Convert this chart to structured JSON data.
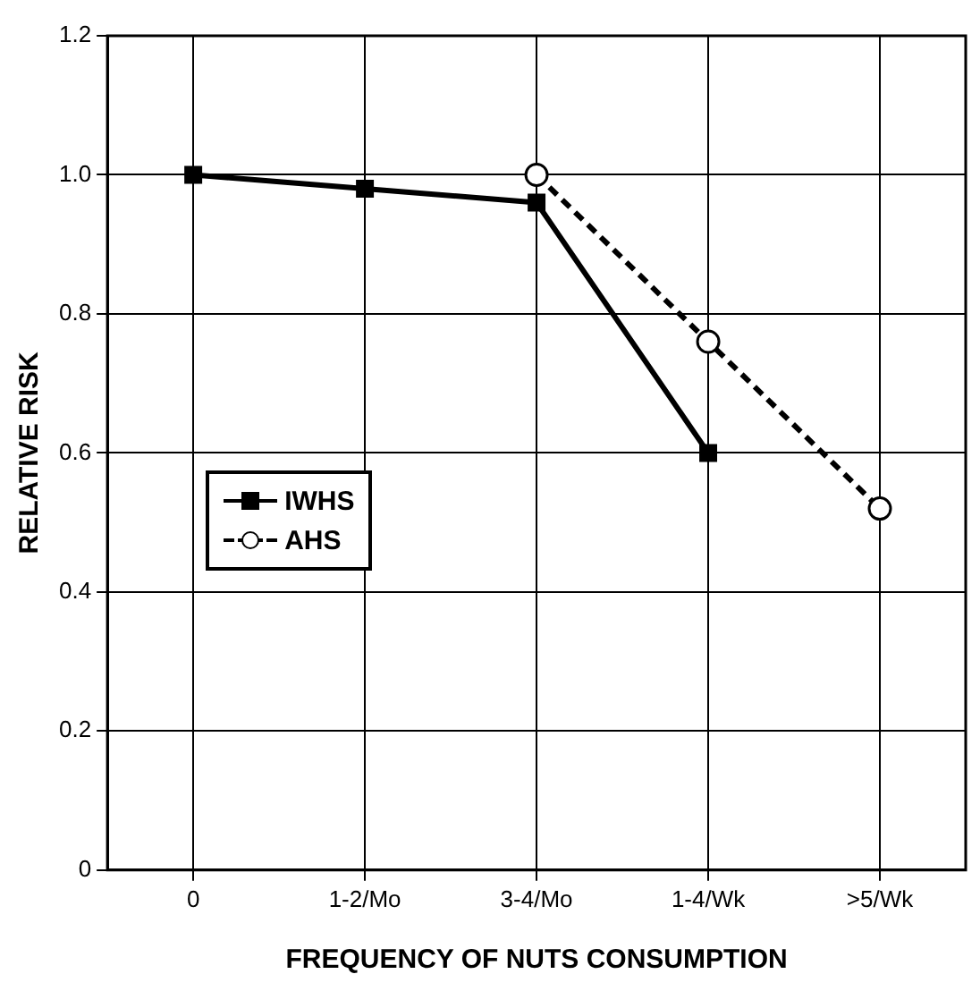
{
  "chart_data": {
    "type": "line",
    "xlabel": "FREQUENCY OF NUTS CONSUMPTION",
    "ylabel": "RELATIVE RISK",
    "categories": [
      "0",
      "1-2/Mo",
      "3-4/Mo",
      "1-4/Wk",
      ">5/Wk"
    ],
    "series": [
      {
        "name": "IWHS",
        "color": "#000000",
        "values": [
          1.0,
          0.98,
          0.96,
          0.6,
          null
        ],
        "marker": "square",
        "line_style": "solid"
      },
      {
        "name": "AHS",
        "color": "#000000",
        "values": [
          null,
          null,
          1.0,
          0.76,
          0.52
        ],
        "marker": "circle",
        "line_style": "dashed"
      }
    ],
    "ylim": [
      0,
      1.2
    ],
    "yticks": [
      0,
      {
        "value": 0.2,
        "label": "0.2"
      },
      {
        "value": 0.4,
        "label": "0.4"
      },
      {
        "value": 0.6,
        "label": "0.6"
      },
      {
        "value": 0.8,
        "label": "0.8"
      },
      {
        "value": 1,
        "label": "1.0"
      },
      {
        "value": 1.2,
        "label": "1.2"
      }
    ],
    "grid": true,
    "legend": "left"
  }
}
